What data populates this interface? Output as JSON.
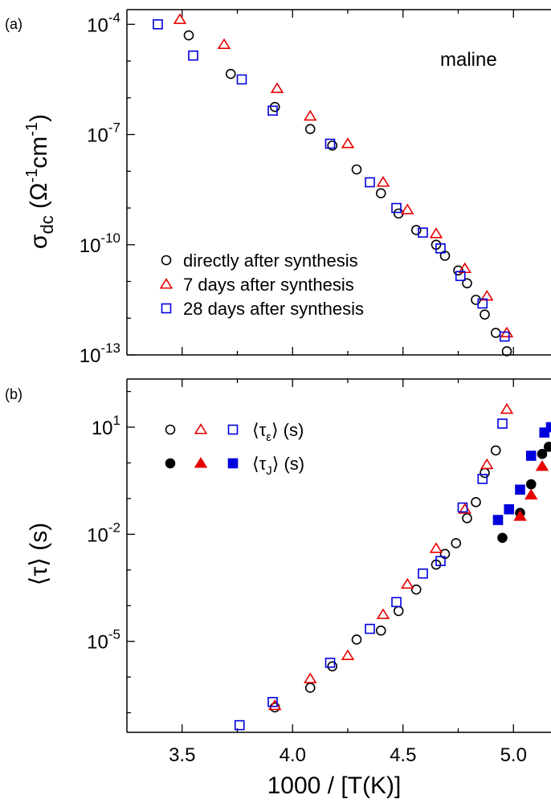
{
  "chart_data": [
    {
      "type": "scatter",
      "panel_label": "(a)",
      "annotation": "maline",
      "ylabel": {
        "main": "σ",
        "sub": "dc",
        "unit": "(Ω-1cm-1)"
      },
      "ylabel_text": "σdc (Ω-1cm-1)",
      "yscale": "log",
      "ylim_exp": [
        -13,
        -3.6
      ],
      "xlim": [
        3.25,
        5.17
      ],
      "yticks": [
        {
          "exp": -4,
          "label_base": "10",
          "label_exp": "-4"
        },
        {
          "exp": -7,
          "label_base": "10",
          "label_exp": "-7"
        },
        {
          "exp": -10,
          "label_base": "10",
          "label_exp": "-10"
        },
        {
          "exp": -13,
          "label_base": "10",
          "label_exp": "-13"
        }
      ],
      "legend_position": "bottom-left",
      "series": [
        {
          "name": "directly after synthesis",
          "marker": "circle",
          "filled": false,
          "color": "#000000",
          "points": [
            [
              3.53,
              -4.3
            ],
            [
              3.72,
              -5.35
            ],
            [
              3.92,
              -6.25
            ],
            [
              4.08,
              -6.85
            ],
            [
              4.18,
              -7.3
            ],
            [
              4.29,
              -7.95
            ],
            [
              4.4,
              -8.6
            ],
            [
              4.48,
              -9.15
            ],
            [
              4.56,
              -9.6
            ],
            [
              4.65,
              -10.0
            ],
            [
              4.69,
              -10.3
            ],
            [
              4.75,
              -10.7
            ],
            [
              4.79,
              -11.05
            ],
            [
              4.83,
              -11.5
            ],
            [
              4.87,
              -11.9
            ],
            [
              4.92,
              -12.4
            ],
            [
              4.97,
              -12.9
            ]
          ]
        },
        {
          "name": "7 days after synthesis",
          "marker": "triangle",
          "filled": false,
          "color": "#e60000",
          "points": [
            [
              3.49,
              -3.87
            ],
            [
              3.69,
              -4.55
            ],
            [
              3.93,
              -5.75
            ],
            [
              4.08,
              -6.5
            ],
            [
              4.25,
              -7.25
            ],
            [
              4.41,
              -8.3
            ],
            [
              4.52,
              -9.05
            ],
            [
              4.65,
              -9.7
            ],
            [
              4.78,
              -10.65
            ],
            [
              4.88,
              -11.4
            ],
            [
              4.97,
              -12.4
            ]
          ]
        },
        {
          "name": "28 days after synthesis",
          "marker": "square",
          "filled": false,
          "color": "#0000dd",
          "points": [
            [
              3.39,
              -4.0
            ],
            [
              3.55,
              -4.85
            ],
            [
              3.77,
              -5.5
            ],
            [
              3.91,
              -6.35
            ],
            [
              4.17,
              -7.25
            ],
            [
              4.35,
              -8.3
            ],
            [
              4.47,
              -9.0
            ],
            [
              4.59,
              -9.67
            ],
            [
              4.67,
              -10.1
            ],
            [
              4.76,
              -10.85
            ],
            [
              4.86,
              -11.6
            ],
            [
              4.96,
              -12.5
            ]
          ]
        }
      ]
    },
    {
      "type": "scatter",
      "panel_label": "(b)",
      "ylabel": "⟨τ⟩ (s)",
      "xlabel": "1000 / [T(K)]",
      "yscale": "log",
      "ylim_exp": [
        -7.55,
        2.35
      ],
      "xlim": [
        3.25,
        5.17
      ],
      "xticks": [
        3.5,
        4.0,
        4.5,
        5.0
      ],
      "xtick_labels": [
        "3.5",
        "4.0",
        "4.5",
        "5.0"
      ],
      "yticks": [
        {
          "exp": 1,
          "label_base": "10",
          "label_exp": "1"
        },
        {
          "exp": -2,
          "label_base": "10",
          "label_exp": "-2"
        },
        {
          "exp": -5,
          "label_base": "10",
          "label_exp": "-5"
        }
      ],
      "legend_position": "top-left",
      "legend_labels": [
        {
          "symbol": "⟨τ",
          "sub": "ε",
          "rest": "⟩ (s)"
        },
        {
          "symbol": "⟨τ",
          "sub": "J",
          "rest": "⟩ (s)"
        }
      ],
      "legend_label_text": [
        "⟨τε⟩ (s)",
        "⟨τJ⟩ (s)"
      ],
      "series": [
        {
          "legend_group": 0,
          "marker": "circle",
          "filled": false,
          "color": "#000000",
          "points": [
            [
              3.92,
              -6.85
            ],
            [
              4.08,
              -6.3
            ],
            [
              4.18,
              -5.7
            ],
            [
              4.29,
              -4.95
            ],
            [
              4.4,
              -4.7
            ],
            [
              4.48,
              -4.15
            ],
            [
              4.56,
              -3.55
            ],
            [
              4.65,
              -2.85
            ],
            [
              4.69,
              -2.55
            ],
            [
              4.74,
              -2.25
            ],
            [
              4.79,
              -1.55
            ],
            [
              4.83,
              -1.1
            ],
            [
              4.87,
              -0.28
            ],
            [
              4.92,
              0.35
            ]
          ]
        },
        {
          "legend_group": 0,
          "marker": "triangle",
          "filled": false,
          "color": "#e60000",
          "points": [
            [
              3.92,
              -6.8
            ],
            [
              4.08,
              -6.05
            ],
            [
              4.25,
              -5.4
            ],
            [
              4.41,
              -4.25
            ],
            [
              4.52,
              -3.4
            ],
            [
              4.65,
              -2.4
            ],
            [
              4.78,
              -1.3
            ],
            [
              4.88,
              -0.05
            ],
            [
              4.97,
              1.5
            ]
          ]
        },
        {
          "legend_group": 0,
          "marker": "square",
          "filled": false,
          "color": "#0000dd",
          "points": [
            [
              3.76,
              -7.35
            ],
            [
              3.91,
              -6.7
            ],
            [
              4.17,
              -5.6
            ],
            [
              4.35,
              -4.65
            ],
            [
              4.47,
              -3.9
            ],
            [
              4.59,
              -3.1
            ],
            [
              4.67,
              -2.75
            ],
            [
              4.77,
              -1.25
            ],
            [
              4.86,
              -0.45
            ],
            [
              4.95,
              1.1
            ]
          ]
        },
        {
          "legend_group": 1,
          "marker": "circle",
          "filled": true,
          "color": "#000000",
          "points": [
            [
              4.95,
              -2.1
            ],
            [
              5.03,
              -1.4
            ],
            [
              5.08,
              -0.6
            ],
            [
              5.13,
              0.25
            ],
            [
              5.16,
              0.45
            ]
          ]
        },
        {
          "legend_group": 1,
          "marker": "triangle",
          "filled": true,
          "color": "#e60000",
          "points": [
            [
              5.03,
              -1.5
            ],
            [
              5.08,
              -0.9
            ],
            [
              5.13,
              -0.1
            ]
          ]
        },
        {
          "legend_group": 1,
          "marker": "square",
          "filled": true,
          "color": "#0000dd",
          "points": [
            [
              4.93,
              -1.6
            ],
            [
              4.98,
              -1.3
            ],
            [
              5.03,
              -0.75
            ],
            [
              5.08,
              0.2
            ],
            [
              5.14,
              0.85
            ],
            [
              5.17,
              1.0
            ]
          ]
        }
      ]
    }
  ]
}
